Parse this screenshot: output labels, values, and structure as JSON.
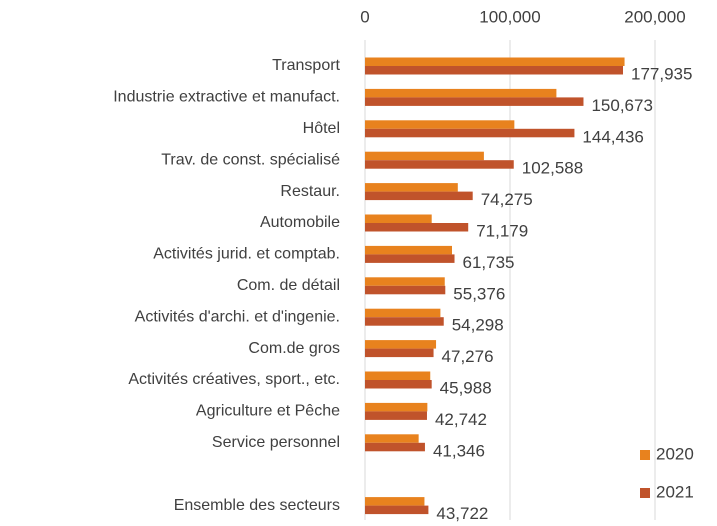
{
  "chart_data": {
    "type": "bar",
    "orientation": "horizontal",
    "categories": [
      "Transport",
      "Industrie extractive et manufact.",
      "Hôtel",
      "Trav. de const. spécialisé",
      "Restaur.",
      "Automobile",
      "Activités jurid. et comptab.",
      "Com. de détail",
      "Activités d'archi. et d'ingenie.",
      "Com.de gros",
      "Activités créatives, sport., etc.",
      "Agriculture et Pêche",
      "Service personnel",
      null,
      "Ensemble des secteurs"
    ],
    "series": [
      {
        "name": "2020",
        "color": "#e8821e",
        "values": [
          179000,
          132000,
          103000,
          82000,
          64000,
          46000,
          60000,
          55000,
          52000,
          49000,
          45000,
          43000,
          37000,
          null,
          41000
        ]
      },
      {
        "name": "2021",
        "color": "#c0532b",
        "values": [
          177935,
          150673,
          144436,
          102588,
          74275,
          71179,
          61735,
          55376,
          54298,
          47276,
          45988,
          42742,
          41346,
          null,
          43722
        ],
        "value_labels": [
          "177,935",
          "150,673",
          "144,436",
          "102,588",
          "74,275",
          "71,179",
          "61,735",
          "55,376",
          "54,298",
          "47,276",
          "45,988",
          "42,742",
          "41,346",
          null,
          "43,722"
        ]
      }
    ],
    "xlim": [
      0,
      240000
    ],
    "xticks": [
      0,
      {
        "value": 100000,
        "label": "100,000"
      },
      {
        "value": 200000,
        "label": "200,000"
      }
    ],
    "grid": true,
    "legend": "bottom-right"
  }
}
